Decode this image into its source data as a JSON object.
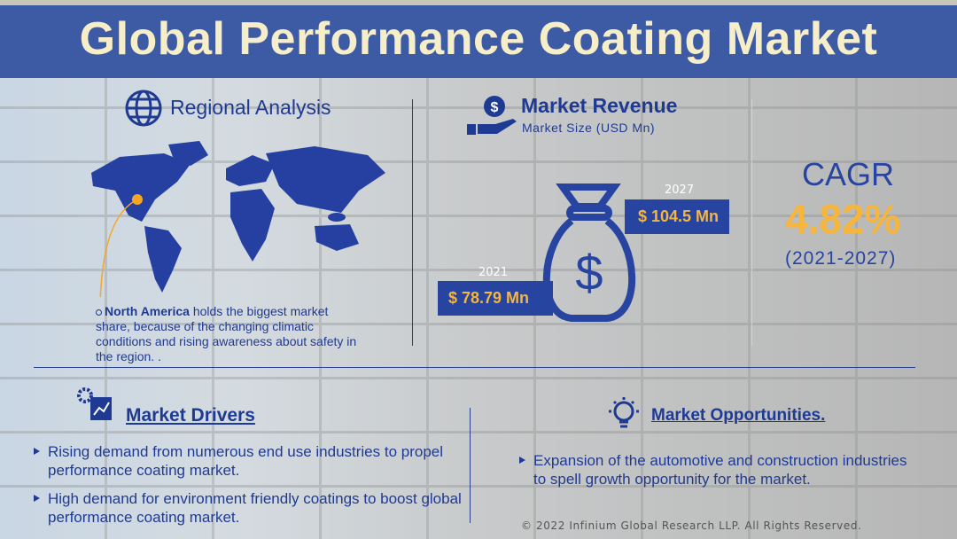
{
  "title": "Global Performance Coating Market",
  "regional": {
    "heading": "Regional Analysis",
    "icon": "globe-icon",
    "highlight": "North America",
    "text": " holds the biggest market share, because of the changing climatic conditions and rising awareness about safety in the region. ."
  },
  "revenue": {
    "heading": "Market Revenue",
    "subheading": "Market Size (USD Mn)",
    "icon": "hand-dollar-icon",
    "start": {
      "year": "2021",
      "value": "$ 78.79 Mn"
    },
    "end": {
      "year": "2027",
      "value": "$ 104.5 Mn"
    }
  },
  "cagr": {
    "label": "CAGR",
    "value": "4.82%",
    "period": "(2021-2027)"
  },
  "drivers": {
    "heading": "Market Drivers",
    "items": [
      "Rising demand from numerous end use industries to propel performance coating market.",
      "High demand for environment friendly coatings to boost global performance coating market."
    ]
  },
  "opportunities": {
    "heading": "Market Opportunities.",
    "items": [
      "Expansion of the automotive and construction industries to spell growth opportunity for the market."
    ]
  },
  "footer": "© 2022 Infinium Global Research LLP. All Rights Reserved.",
  "colors": {
    "navy": "#1f3a93",
    "banner": "#3d5aa5",
    "accent": "#f6b53c",
    "title_text": "#f6edc9"
  }
}
